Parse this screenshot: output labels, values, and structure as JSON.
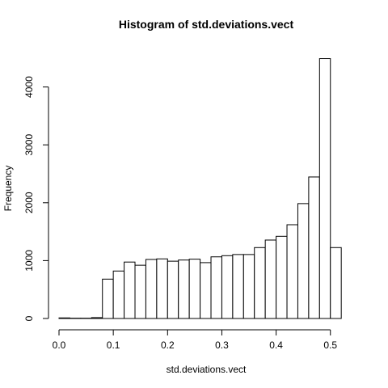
{
  "chart_data": {
    "type": "bar",
    "title": "Histogram of std.deviations.vect",
    "xlabel": "std.deviations.vect",
    "ylabel": "Frequency",
    "xlim": [
      0.0,
      0.52
    ],
    "ylim": [
      0,
      4500
    ],
    "x_ticks": [
      {
        "value": 0.0,
        "label": "0.0"
      },
      {
        "value": 0.1,
        "label": "0.1"
      },
      {
        "value": 0.2,
        "label": "0.2"
      },
      {
        "value": 0.3,
        "label": "0.3"
      },
      {
        "value": 0.4,
        "label": "0.4"
      },
      {
        "value": 0.5,
        "label": "0.5"
      }
    ],
    "y_ticks": [
      {
        "value": 0,
        "label": "0"
      },
      {
        "value": 1000,
        "label": "1000"
      },
      {
        "value": 2000,
        "label": "2000"
      },
      {
        "value": 3000,
        "label": "3000"
      },
      {
        "value": 4000,
        "label": "4000"
      }
    ],
    "bin_edges": [
      0.0,
      0.02,
      0.04,
      0.06,
      0.08,
      0.1,
      0.12,
      0.14,
      0.16,
      0.18,
      0.2,
      0.22,
      0.24,
      0.26,
      0.28,
      0.3,
      0.32,
      0.34,
      0.36,
      0.38,
      0.4,
      0.42,
      0.44,
      0.46,
      0.48,
      0.5,
      0.52
    ],
    "values": [
      10,
      5,
      5,
      15,
      680,
      820,
      975,
      920,
      1020,
      1030,
      990,
      1010,
      1025,
      965,
      1065,
      1085,
      1105,
      1105,
      1225,
      1355,
      1420,
      1620,
      1985,
      2445,
      4490,
      1225
    ]
  }
}
